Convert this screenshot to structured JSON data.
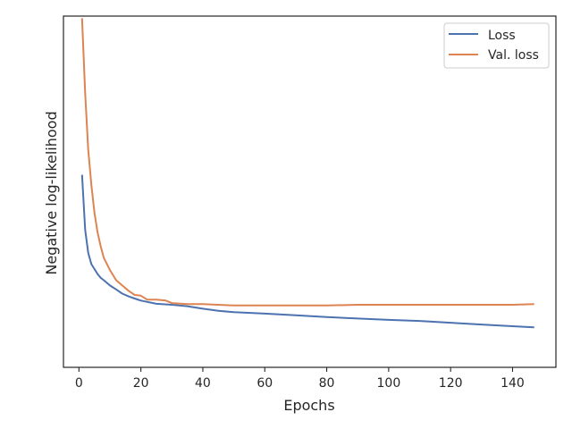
{
  "chart_data": {
    "type": "line",
    "title": "",
    "xlabel": "Epochs",
    "ylabel": "Negative log-likelihood",
    "xlim": [
      -5,
      154
    ],
    "ylim": [
      0,
      1
    ],
    "y_ticks_shown": false,
    "grid": false,
    "legend_position": "top-right",
    "x_ticks": [
      0,
      20,
      40,
      60,
      80,
      100,
      120,
      140
    ],
    "x_tick_labels": [
      "0",
      "20",
      "40",
      "60",
      "80",
      "100",
      "120",
      "140"
    ],
    "series": [
      {
        "name": "Loss",
        "color": "#4c72b0",
        "x": [
          1,
          2,
          3,
          4,
          5,
          6,
          7,
          8,
          10,
          12,
          14,
          16,
          18,
          20,
          25,
          30,
          35,
          40,
          45,
          50,
          60,
          70,
          80,
          90,
          100,
          110,
          120,
          130,
          140,
          147
        ],
        "y": [
          0.548,
          0.391,
          0.326,
          0.294,
          0.28,
          0.266,
          0.255,
          0.248,
          0.233,
          0.222,
          0.21,
          0.202,
          0.196,
          0.19,
          0.181,
          0.178,
          0.174,
          0.167,
          0.161,
          0.157,
          0.153,
          0.148,
          0.143,
          0.139,
          0.135,
          0.132,
          0.127,
          0.122,
          0.117,
          0.114
        ]
      },
      {
        "name": "Val. loss",
        "color": "#dd8452",
        "x": [
          1,
          2,
          3,
          4,
          5,
          6,
          7,
          8,
          10,
          12,
          14,
          16,
          18,
          20,
          22,
          25,
          28,
          30,
          35,
          40,
          50,
          60,
          70,
          80,
          90,
          100,
          110,
          120,
          130,
          140,
          147
        ],
        "y": [
          0.994,
          0.78,
          0.62,
          0.52,
          0.44,
          0.385,
          0.345,
          0.312,
          0.277,
          0.248,
          0.233,
          0.218,
          0.206,
          0.204,
          0.193,
          0.193,
          0.19,
          0.183,
          0.18,
          0.18,
          0.176,
          0.176,
          0.176,
          0.176,
          0.178,
          0.178,
          0.178,
          0.178,
          0.178,
          0.178,
          0.18
        ]
      }
    ]
  }
}
